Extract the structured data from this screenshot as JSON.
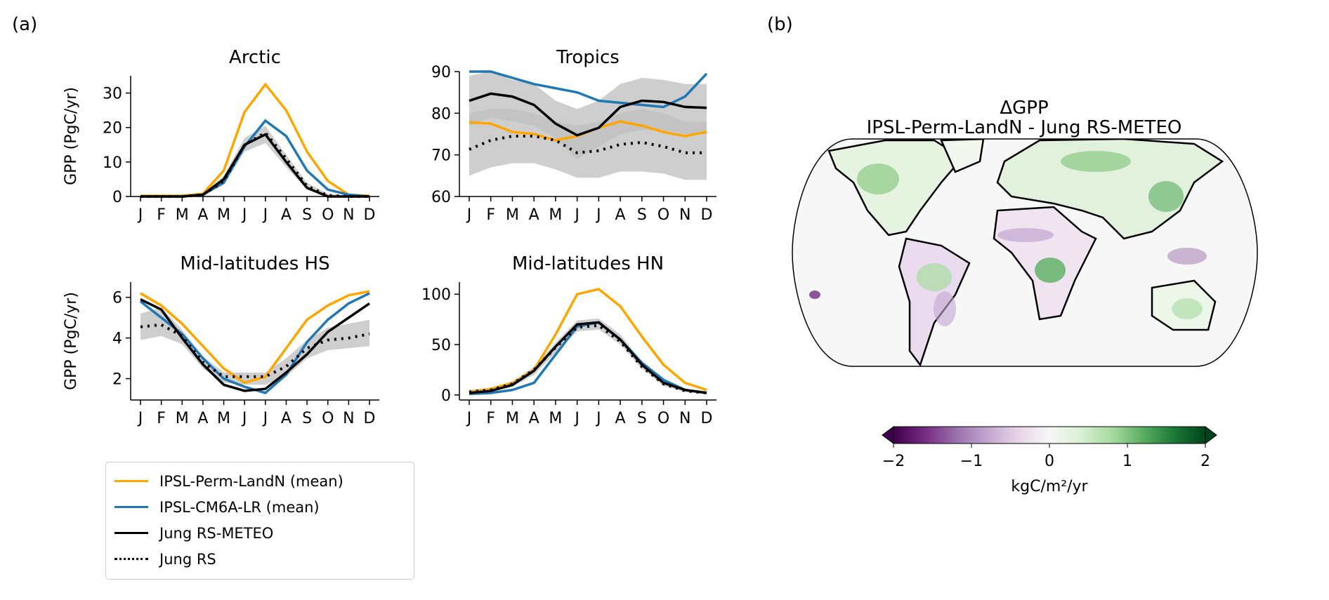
{
  "panel_labels": {
    "a": "(a)",
    "b": "(b)"
  },
  "months": [
    "J",
    "F",
    "M",
    "A",
    "M",
    "J",
    "J",
    "A",
    "S",
    "O",
    "N",
    "D"
  ],
  "colors": {
    "orange": "#FFA500",
    "blue": "#1f77b4",
    "black": "#000000",
    "band": "#bdbdbd"
  },
  "legend": [
    {
      "label": "IPSL-Perm-LandN (mean)",
      "color": "#FFA500",
      "style": "solid"
    },
    {
      "label": "IPSL-CM6A-LR (mean)",
      "color": "#1f77b4",
      "style": "solid"
    },
    {
      "label": "Jung RS-METEO",
      "color": "#000000",
      "style": "solid"
    },
    {
      "label": "Jung RS",
      "color": "#000000",
      "style": "dotted"
    }
  ],
  "chart_data": [
    {
      "type": "line",
      "title": "Arctic",
      "ylabel": "GPP (PgC/yr)",
      "ylim": [
        0,
        35
      ],
      "yticks": [
        0,
        10,
        20,
        30
      ],
      "series": [
        {
          "name": "IPSL-Perm-LandN (mean)",
          "values": [
            0.2,
            0.2,
            0.2,
            0.8,
            7.5,
            24.5,
            32.5,
            25,
            13,
            4.5,
            0.5,
            0.2
          ]
        },
        {
          "name": "IPSL-CM6A-LR (mean)",
          "values": [
            0,
            0,
            0,
            0.5,
            4,
            14.5,
            22,
            17.5,
            7.5,
            2,
            0.5,
            0
          ]
        },
        {
          "name": "Jung RS-METEO",
          "values": [
            0,
            0,
            0,
            0.5,
            5,
            15,
            18,
            10,
            2.5,
            0,
            0,
            0
          ]
        },
        {
          "name": "Jung RS",
          "values": [
            0,
            0,
            0,
            0.5,
            4.5,
            15,
            18.5,
            11,
            3,
            0.3,
            0,
            0
          ]
        }
      ],
      "bands": [
        {
          "lower": [
            0,
            0,
            0,
            0.2,
            3.5,
            13,
            15.5,
            8.5,
            2,
            0,
            0,
            0
          ],
          "upper": [
            0.5,
            0.5,
            0.5,
            1,
            6,
            17,
            20.5,
            12,
            4,
            0.8,
            0.3,
            0.3
          ]
        }
      ]
    },
    {
      "type": "line",
      "title": "Tropics",
      "ylabel": "",
      "ylim": [
        60,
        90
      ],
      "yticks": [
        60,
        70,
        80,
        90
      ],
      "series": [
        {
          "name": "IPSL-Perm-LandN (mean)",
          "values": [
            77.8,
            77.5,
            75.5,
            75,
            73.5,
            74.5,
            76.5,
            78,
            77,
            75.5,
            74.5,
            75.5
          ]
        },
        {
          "name": "IPSL-CM6A-LR (mean)",
          "values": [
            91,
            90,
            88.5,
            87,
            86,
            85,
            83,
            82.5,
            82,
            81.5,
            84,
            89.5
          ]
        },
        {
          "name": "Jung RS-METEO",
          "values": [
            83,
            84.7,
            84,
            82,
            77.5,
            74.7,
            76.5,
            81.5,
            83,
            82.7,
            81.5,
            81.3
          ]
        },
        {
          "name": "Jung RS",
          "values": [
            71.3,
            73.5,
            74.5,
            74.5,
            73.5,
            70.5,
            71,
            72.5,
            73,
            72,
            70.5,
            70.5
          ]
        }
      ],
      "bands": [
        {
          "lower": [
            65,
            67,
            68,
            68,
            66.5,
            64.5,
            64.5,
            66,
            66,
            65.5,
            64,
            64
          ],
          "upper": [
            89,
            90,
            88,
            87,
            83,
            81,
            83,
            87,
            88.5,
            88,
            87,
            87
          ]
        },
        {
          "lower": [
            77,
            79,
            78,
            77,
            74,
            69,
            72,
            75,
            76,
            76,
            75,
            75
          ],
          "upper": [
            80,
            81,
            81,
            80,
            78,
            77,
            78,
            80,
            81,
            80,
            78,
            78
          ]
        }
      ]
    },
    {
      "type": "line",
      "title": "Mid-latitudes HS",
      "ylabel": "GPP (PgC/yr)",
      "ylim": [
        0.95,
        6.75
      ],
      "yticks": [
        2,
        4,
        6
      ],
      "series": [
        {
          "name": "IPSL-Perm-LandN (mean)",
          "values": [
            6.2,
            5.6,
            4.7,
            3.6,
            2.5,
            1.8,
            2.1,
            3.5,
            4.9,
            5.6,
            6.1,
            6.3
          ]
        },
        {
          "name": "IPSL-CM6A-LR (mean)",
          "values": [
            5.8,
            5.0,
            4.2,
            3.0,
            2.0,
            1.6,
            1.3,
            2.2,
            3.8,
            4.9,
            5.7,
            6.2
          ]
        },
        {
          "name": "Jung RS-METEO",
          "values": [
            5.9,
            5.4,
            4.0,
            2.7,
            1.7,
            1.4,
            1.5,
            2.3,
            3.2,
            4.3,
            5.0,
            5.7
          ]
        },
        {
          "name": "Jung RS",
          "values": [
            4.55,
            4.65,
            4.1,
            2.8,
            2.1,
            2.1,
            2.1,
            2.6,
            3.5,
            3.9,
            4.0,
            4.2
          ]
        }
      ],
      "bands": [
        {
          "lower": [
            3.9,
            4.1,
            3.7,
            2.5,
            1.8,
            1.7,
            1.7,
            2.1,
            3.0,
            3.4,
            3.5,
            3.6
          ],
          "upper": [
            5.2,
            5.5,
            4.4,
            3.1,
            2.3,
            2.3,
            2.3,
            3.0,
            3.9,
            4.5,
            4.7,
            4.9
          ]
        }
      ]
    },
    {
      "type": "line",
      "title": "Mid-latitudes HN",
      "ylabel": "",
      "ylim": [
        -5,
        112
      ],
      "yticks": [
        0,
        50,
        100
      ],
      "series": [
        {
          "name": "IPSL-Perm-LandN (mean)",
          "values": [
            3,
            6,
            12,
            25,
            60,
            100,
            105,
            88,
            58,
            30,
            12,
            5
          ]
        },
        {
          "name": "IPSL-CM6A-LR (mean)",
          "values": [
            1,
            2,
            5,
            12,
            40,
            68,
            72,
            55,
            32,
            15,
            5,
            2
          ]
        },
        {
          "name": "Jung RS-METEO",
          "values": [
            2,
            4,
            10,
            24,
            48,
            70,
            72,
            55,
            30,
            12,
            5,
            2
          ]
        },
        {
          "name": "Jung RS",
          "values": [
            3,
            5,
            11,
            25,
            47,
            67,
            69,
            53,
            28,
            11,
            4,
            2
          ]
        }
      ],
      "bands": [
        {
          "lower": [
            1,
            3,
            8,
            20,
            42,
            63,
            65,
            50,
            26,
            9,
            3,
            1
          ],
          "upper": [
            5,
            7,
            13,
            28,
            52,
            74,
            76,
            60,
            33,
            14,
            6,
            4
          ]
        }
      ]
    }
  ],
  "map": {
    "title": "ΔGPP",
    "subtitle": "IPSL-Perm-LandN - Jung RS-METEO",
    "colorbar": {
      "ticks": [
        "−2",
        "−1",
        "0",
        "1",
        "2"
      ],
      "range": [
        -2,
        2
      ],
      "label": "kgC/m²/yr",
      "colormap": [
        "#40004b",
        "#762a83",
        "#9970ab",
        "#c2a5cf",
        "#e7d4e8",
        "#f7f7f7",
        "#d9f0d3",
        "#a6dba0",
        "#5aae61",
        "#1b7837",
        "#00441b"
      ]
    }
  }
}
